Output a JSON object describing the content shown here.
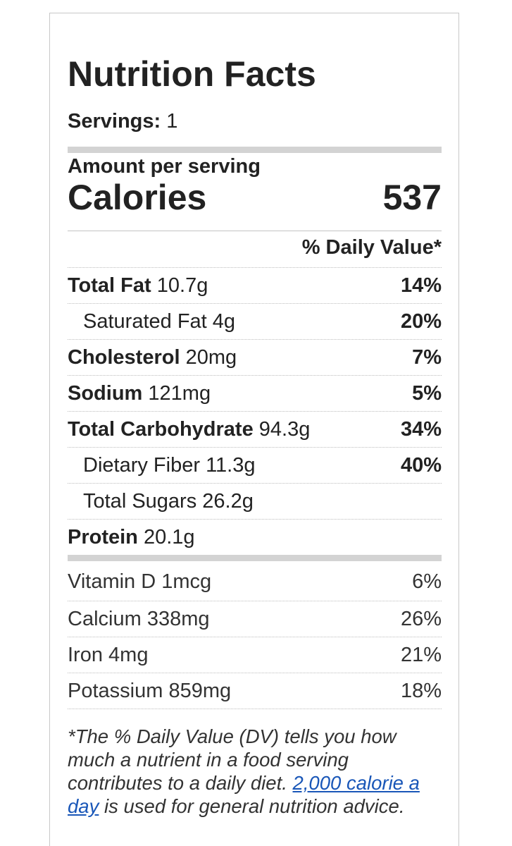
{
  "label": {
    "title": "Nutrition Facts",
    "servings_label": "Servings:",
    "servings_value": "1",
    "amount_per_serving": "Amount per serving",
    "calories_label": "Calories",
    "calories_value": "537",
    "daily_value_header": "% Daily Value*"
  },
  "nutrients": [
    {
      "name": "Total Fat",
      "amount": "10.7g",
      "pct": "14%"
    },
    {
      "name": "Saturated Fat",
      "amount": "4g",
      "pct": "20%"
    },
    {
      "name": "Cholesterol",
      "amount": "20mg",
      "pct": "7%"
    },
    {
      "name": "Sodium",
      "amount": "121mg",
      "pct": "5%"
    },
    {
      "name": "Total Carbohydrate",
      "amount": "94.3g",
      "pct": "34%"
    },
    {
      "name": "Dietary Fiber",
      "amount": "11.3g",
      "pct": "40%"
    },
    {
      "name": "Total Sugars",
      "amount": "26.2g",
      "pct": ""
    },
    {
      "name": "Protein",
      "amount": "20.1g",
      "pct": ""
    }
  ],
  "vitamins": [
    {
      "name": "Vitamin D",
      "amount": "1mcg",
      "pct": "6%"
    },
    {
      "name": "Calcium",
      "amount": "338mg",
      "pct": "26%"
    },
    {
      "name": "Iron",
      "amount": "4mg",
      "pct": "21%"
    },
    {
      "name": "Potassium",
      "amount": "859mg",
      "pct": "18%"
    }
  ],
  "footnote": {
    "before": "*The % Daily Value (DV) tells you how much a nutrient in a food serving contributes to a daily diet. ",
    "link_text": "2,000 calorie a day",
    "after": " is used for general nutrition advice."
  },
  "colors": {
    "text": "#222222",
    "link": "#1a57b8",
    "thick_bar": "#d3d3d3",
    "border": "#c8c8c8"
  }
}
